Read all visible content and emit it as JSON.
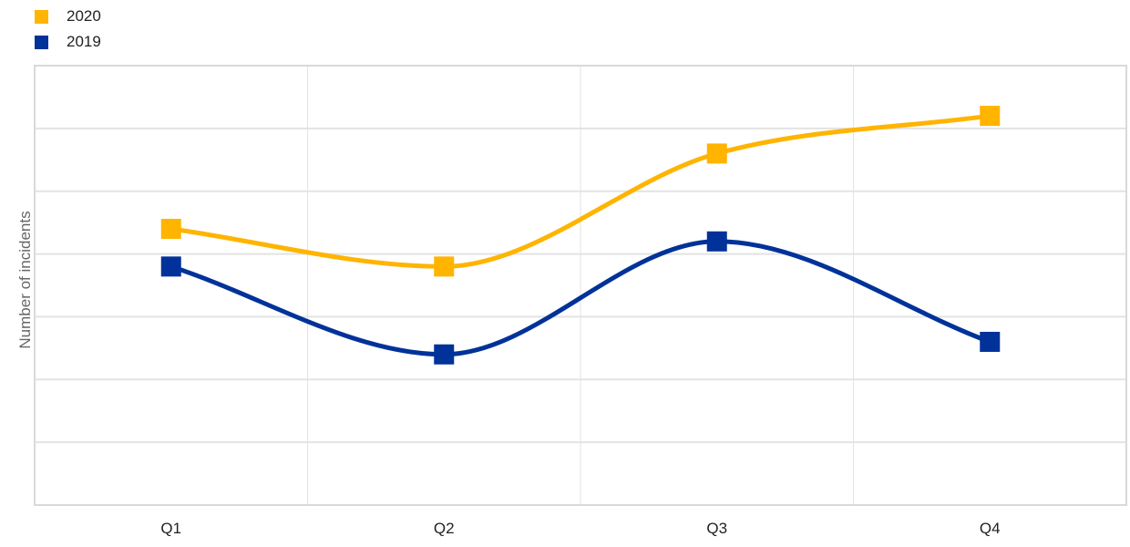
{
  "chart_data": {
    "type": "line",
    "categories": [
      "Q1",
      "Q2",
      "Q3",
      "Q4"
    ],
    "series": [
      {
        "name": "2020",
        "values": [
          4.4,
          3.8,
          5.6,
          6.2
        ],
        "color": "#FFB400"
      },
      {
        "name": "2019",
        "values": [
          3.8,
          2.4,
          4.2,
          2.6
        ],
        "color": "#003299"
      }
    ],
    "title": "",
    "xlabel": "",
    "ylabel": "Number of incidents",
    "ylim": [
      0,
      7
    ],
    "y_tick_labels": "none",
    "grid": true,
    "smooth": true,
    "legend_position": "top-left"
  }
}
